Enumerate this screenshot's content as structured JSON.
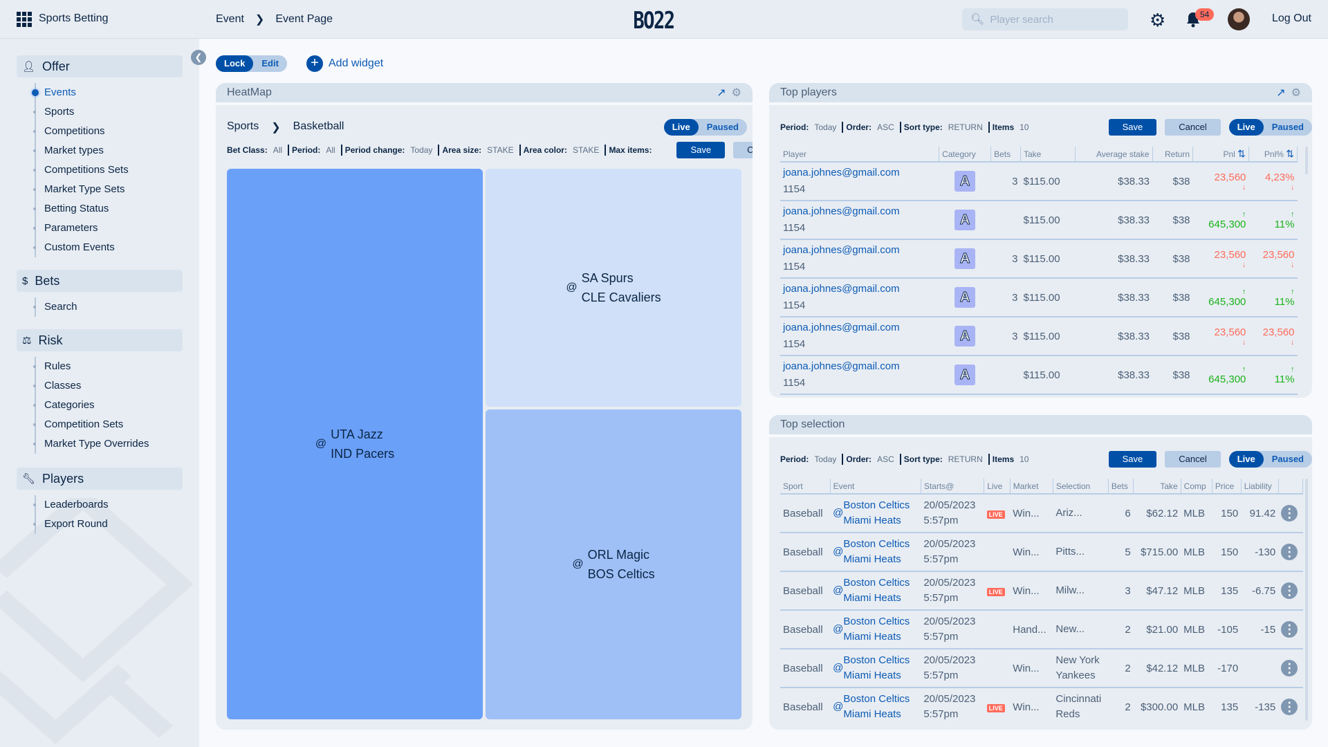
{
  "header": {
    "app_name": "Sports Betting",
    "breadcrumb": [
      "Event",
      "Event Page"
    ],
    "logo": "BO22",
    "search_placeholder": "Player search",
    "notifications": "54",
    "logout": "Log Out"
  },
  "sidebar": {
    "sections": [
      {
        "label": "Offer",
        "icon": "person-icon",
        "items": [
          "Events",
          "Sports",
          "Competitions",
          "Market types",
          "Competitions Sets",
          "Market Type Sets",
          "Betting Status",
          "Parameters",
          "Custom Events"
        ]
      },
      {
        "label": "Bets",
        "icon": "dollar-icon",
        "items": [
          "Search"
        ]
      },
      {
        "label": "Risk",
        "icon": "risk-icon",
        "items": [
          "Rules",
          "Classes",
          "Categories",
          "Competition Sets",
          "Market Type Overrides"
        ]
      },
      {
        "label": "Players",
        "icon": "wrench-icon",
        "items": [
          "Leaderboards",
          "Export Round"
        ]
      }
    ]
  },
  "toolbar": {
    "lock": "Lock",
    "edit": "Edit",
    "add_widget": "Add widget"
  },
  "heatmap": {
    "title": "HeatMap",
    "crumb": [
      "Sports",
      "Basketball"
    ],
    "live": "Live",
    "paused": "Paused",
    "filters": [
      [
        "Bet Class:",
        "All"
      ],
      [
        "Period:",
        "All"
      ],
      [
        "Period change:",
        "Today"
      ],
      [
        "Area size:",
        "STAKE"
      ],
      [
        "Area color:",
        "STAKE"
      ],
      [
        "Max items:",
        ""
      ]
    ],
    "save": "Save",
    "cancel": "Cancel",
    "tiles": [
      {
        "at": "@",
        "home": "UTA Jazz",
        "away": "IND Pacers",
        "color": "#6aa0f8"
      },
      {
        "at": "@",
        "home": "SA Spurs",
        "away": "CLE Cavaliers",
        "color": "#d0e0f8"
      },
      {
        "at": "@",
        "home": "ORL Magic",
        "away": "BOS Celtics",
        "color": "#9fc0f6"
      }
    ]
  },
  "top_players": {
    "title": "Top players",
    "filters": [
      [
        "Period:",
        "Today"
      ],
      [
        "Order:",
        "ASC"
      ],
      [
        "Sort type:",
        "RETURN"
      ],
      [
        "Items",
        "10"
      ]
    ],
    "save": "Save",
    "cancel": "Cancel",
    "live": "Live",
    "paused": "Paused",
    "columns": [
      "Player",
      "Category",
      "Bets",
      "Take",
      "Average stake",
      "Return",
      "Pnl",
      "Pnl%"
    ],
    "rows": [
      {
        "email": "joana.johnes@gmail.com",
        "id": "1154",
        "cat": "A",
        "bets": "3",
        "take": "$115.00",
        "avg": "$38.33",
        "ret": "$38",
        "pnl": "23,560",
        "pnl_pct": "4,23%",
        "trend": "down"
      },
      {
        "email": "joana.johnes@gmail.com",
        "id": "1154",
        "cat": "A",
        "bets": "",
        "take": "$115.00",
        "avg": "$38.33",
        "ret": "$38",
        "pnl": "645,300",
        "pnl_pct": "11%",
        "trend": "up"
      },
      {
        "email": "joana.johnes@gmail.com",
        "id": "1154",
        "cat": "A",
        "bets": "3",
        "take": "$115.00",
        "avg": "$38.33",
        "ret": "$38",
        "pnl": "23,560",
        "pnl_pct": "23,560",
        "trend": "down"
      },
      {
        "email": "joana.johnes@gmail.com",
        "id": "1154",
        "cat": "A",
        "bets": "3",
        "take": "$115.00",
        "avg": "$38.33",
        "ret": "$38",
        "pnl": "645,300",
        "pnl_pct": "11%",
        "trend": "up"
      },
      {
        "email": "joana.johnes@gmail.com",
        "id": "1154",
        "cat": "A",
        "bets": "3",
        "take": "$115.00",
        "avg": "$38.33",
        "ret": "$38",
        "pnl": "23,560",
        "pnl_pct": "23,560",
        "trend": "down"
      },
      {
        "email": "joana.johnes@gmail.com",
        "id": "1154",
        "cat": "A",
        "bets": "",
        "take": "$115.00",
        "avg": "$38.33",
        "ret": "$38",
        "pnl": "645,300",
        "pnl_pct": "11%",
        "trend": "up"
      }
    ]
  },
  "top_selection": {
    "title": "Top selection",
    "filters": [
      [
        "Period:",
        "Today"
      ],
      [
        "Order:",
        "ASC"
      ],
      [
        "Sort type:",
        "RETURN"
      ],
      [
        "Items",
        "10"
      ]
    ],
    "save": "Save",
    "cancel": "Cancel",
    "live": "Live",
    "paused": "Paused",
    "live_badge": "LIVE",
    "columns": [
      "Sport",
      "Event",
      "Starts@",
      "Live",
      "Market",
      "Selection",
      "Bets",
      "Take",
      "Comp",
      "Price",
      "Liability",
      ""
    ],
    "rows": [
      {
        "sport": "Baseball",
        "home": "Boston Celtics",
        "away": "Miami Heats",
        "date": "20/05/2023",
        "time": "5:57pm",
        "live": true,
        "market": "Win...",
        "selection": "Ariz...",
        "bets": "6",
        "take": "$62.12",
        "comp": "MLB",
        "price": "150",
        "liability": "91.42"
      },
      {
        "sport": "Baseball",
        "home": "Boston Celtics",
        "away": "Miami Heats",
        "date": "20/05/2023",
        "time": "5:57pm",
        "live": false,
        "market": "Win...",
        "selection": "Pitts...",
        "bets": "5",
        "take": "$715.00",
        "comp": "MLB",
        "price": "150",
        "liability": "-130"
      },
      {
        "sport": "Baseball",
        "home": "Boston Celtics",
        "away": "Miami Heats",
        "date": "20/05/2023",
        "time": "5:57pm",
        "live": true,
        "market": "Win...",
        "selection": "Milw...",
        "bets": "3",
        "take": "$47.12",
        "comp": "MLB",
        "price": "135",
        "liability": "-6.75"
      },
      {
        "sport": "Baseball",
        "home": "Boston Celtics",
        "away": "Miami Heats",
        "date": "20/05/2023",
        "time": "5:57pm",
        "live": false,
        "market": "Hand...",
        "selection": "New...",
        "bets": "2",
        "take": "$21.00",
        "comp": "MLB",
        "price": "-105",
        "liability": "-15"
      },
      {
        "sport": "Baseball",
        "home": "Boston Celtics",
        "away": "Miami Heats",
        "date": "20/05/2023",
        "time": "5:57pm",
        "live": false,
        "market": "Win...",
        "selection": "New York Yankees",
        "bets": "2",
        "take": "$42.12",
        "comp": "MLB",
        "price": "-170",
        "liability": ""
      },
      {
        "sport": "Baseball",
        "home": "Boston Celtics",
        "away": "Miami Heats",
        "date": "20/05/2023",
        "time": "5:57pm",
        "live": true,
        "market": "Win...",
        "selection": "Cincinnati Reds",
        "bets": "2",
        "take": "$300.00",
        "comp": "MLB",
        "price": "135",
        "liability": "-135"
      }
    ]
  }
}
